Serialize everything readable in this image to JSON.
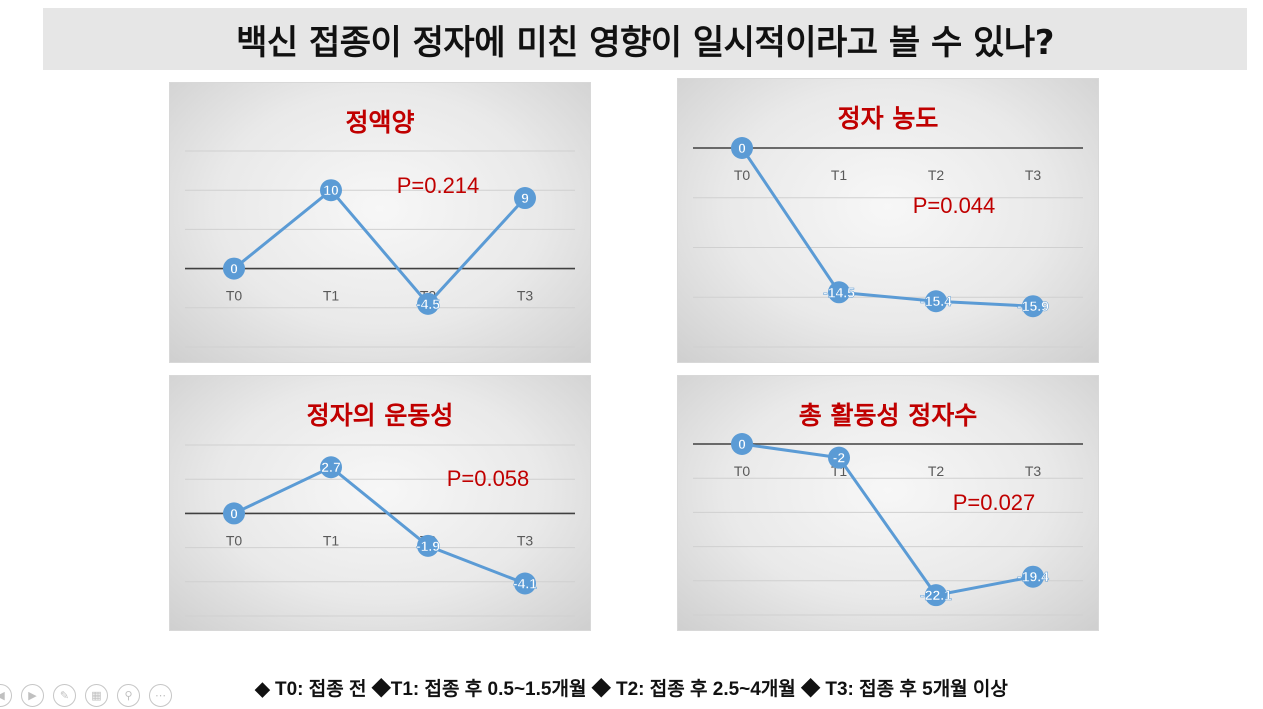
{
  "page": {
    "title": "백신 접종이 정자에 미친 영향이 일시적이라고 볼 수 있나?",
    "footer": "◆ T0: 접종 전  ◆T1: 접종 후 0.5~1.5개월 ◆ T2: 접종 후 2.5~4개월 ◆ T3: 접종 후 5개월 이상"
  },
  "colors": {
    "line": "#5b9bd5",
    "title_red": "#c00000",
    "grid": "#d0d0d0",
    "zero_axis": "#404040",
    "tick_label": "#595959"
  },
  "ppt_controls": [
    "prev-icon",
    "next-icon",
    "pen-icon",
    "slides-icon",
    "zoom-icon",
    "more-icon"
  ],
  "chart_data": [
    {
      "type": "line",
      "title": "정액양",
      "annotation": "P=0.214",
      "categories": [
        "T0",
        "T1",
        "T2",
        "T3"
      ],
      "values": [
        0,
        10,
        -4.5,
        9
      ],
      "data_labels": [
        "0",
        "10",
        "-4.5",
        "9"
      ],
      "ylim": [
        -10,
        15
      ],
      "grid_step": 5,
      "grid": true,
      "legend": "none"
    },
    {
      "type": "line",
      "title": "정자 농도",
      "annotation": "P=0.044",
      "categories": [
        "T0",
        "T1",
        "T2",
        "T3"
      ],
      "values": [
        0,
        -14.5,
        -15.4,
        -15.9
      ],
      "data_labels": [
        "0",
        "-14.5",
        "-15.4",
        "-15.9"
      ],
      "ylim": [
        -20,
        0
      ],
      "grid_step": 5,
      "grid": true,
      "legend": "none"
    },
    {
      "type": "line",
      "title": "정자의 운동성",
      "annotation": "P=0.058",
      "categories": [
        "T0",
        "T1",
        "T2",
        "T3"
      ],
      "values": [
        0,
        2.7,
        -1.9,
        -4.1
      ],
      "data_labels": [
        "0",
        "2.7",
        "-1.9",
        "-4.1"
      ],
      "ylim": [
        -6,
        4
      ],
      "grid_step": 2,
      "grid": true,
      "legend": "none"
    },
    {
      "type": "line",
      "title": "총 활동성 정자수",
      "annotation": "P=0.027",
      "categories": [
        "T0",
        "T1",
        "T2",
        "T3"
      ],
      "values": [
        0,
        -2,
        -22.1,
        -19.4
      ],
      "data_labels": [
        "0",
        "-2",
        "-22.1",
        "-19.4"
      ],
      "ylim": [
        -25,
        0
      ],
      "grid_step": 5,
      "grid": true,
      "legend": "none"
    }
  ]
}
